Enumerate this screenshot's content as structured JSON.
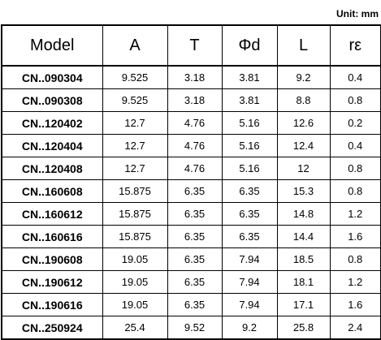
{
  "unit": "Unit: mm",
  "table": {
    "header": [
      "Model",
      "A",
      "T",
      "Φd",
      "L",
      "rε"
    ],
    "rows": [
      [
        "CN..090304",
        "9.525",
        "3.18",
        "3.81",
        "9.2",
        "0.4"
      ],
      [
        "CN..090308",
        "9.525",
        "3.18",
        "3.81",
        "8.8",
        "0.8"
      ],
      [
        "CN..120402",
        "12.7",
        "4.76",
        "5.16",
        "12.6",
        "0.2"
      ],
      [
        "CN..120404",
        "12.7",
        "4.76",
        "5.16",
        "12.4",
        "0.4"
      ],
      [
        "CN..120408",
        "12.7",
        "4.76",
        "5.16",
        "12",
        "0.8"
      ],
      [
        "CN..160608",
        "15.875",
        "6.35",
        "6.35",
        "15.3",
        "0.8"
      ],
      [
        "CN..160612",
        "15.875",
        "6.35",
        "6.35",
        "14.8",
        "1.2"
      ],
      [
        "CN..160616",
        "15.875",
        "6.35",
        "6.35",
        "14.4",
        "1.6"
      ],
      [
        "CN..190608",
        "19.05",
        "6.35",
        "7.94",
        "18.5",
        "0.8"
      ],
      [
        "CN..190612",
        "19.05",
        "6.35",
        "7.94",
        "18.1",
        "1.2"
      ],
      [
        "CN..190616",
        "19.05",
        "6.35",
        "7.94",
        "17.1",
        "1.6"
      ],
      [
        "CN..250924",
        "25.4",
        "9.52",
        "9.2",
        "25.8",
        "2.4"
      ]
    ]
  }
}
